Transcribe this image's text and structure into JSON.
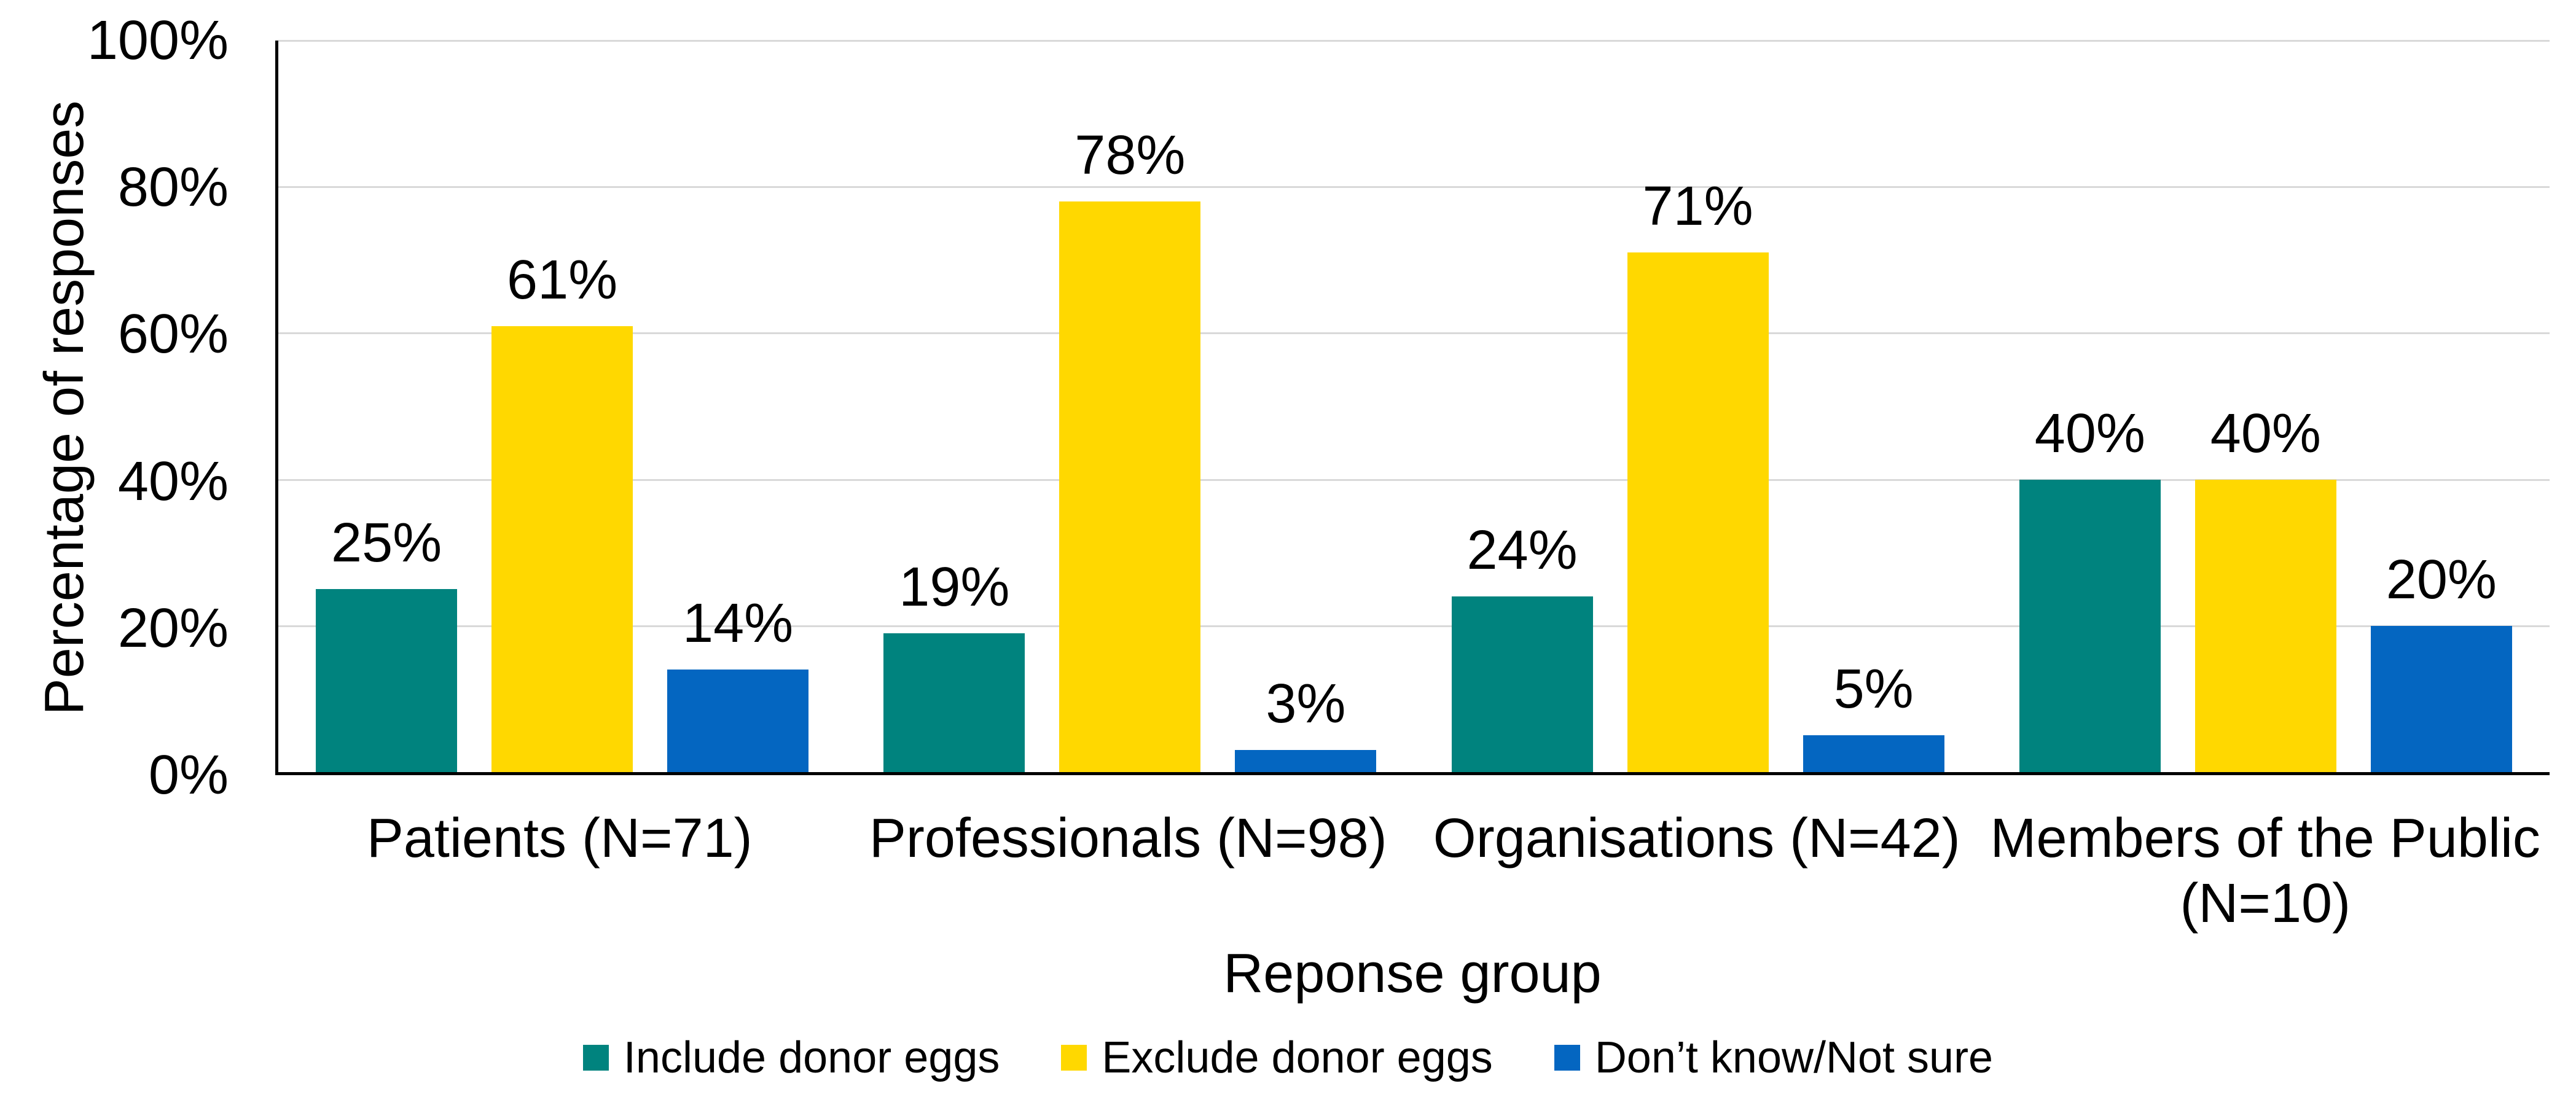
{
  "chart_data": {
    "type": "bar",
    "title": "",
    "xlabel": "Reponse group",
    "ylabel": "Percentage of responses",
    "ylim": [
      0,
      100
    ],
    "yticks": [
      {
        "value": 0,
        "label": "0%"
      },
      {
        "value": 20,
        "label": "20%"
      },
      {
        "value": 40,
        "label": "40%"
      },
      {
        "value": 60,
        "label": "60%"
      },
      {
        "value": 80,
        "label": "80%"
      },
      {
        "value": 100,
        "label": "100%"
      }
    ],
    "gridline_values": [
      20,
      40,
      60,
      80,
      100
    ],
    "grid": "horizontal",
    "legend_position": "bottom",
    "categories": [
      "Patients (N=71)",
      "Professionals (N=98)",
      "Organisations (N=42)",
      "Members of the Public (N=10)"
    ],
    "series": [
      {
        "name": "Include donor eggs",
        "color": "#00837E",
        "values": [
          25,
          19,
          24,
          40
        ],
        "data_labels": [
          "25%",
          "19%",
          "24%",
          "40%"
        ]
      },
      {
        "name": "Exclude donor eggs",
        "color": "#FFD800",
        "values": [
          61,
          78,
          71,
          40
        ],
        "data_labels": [
          "61%",
          "78%",
          "71%",
          "40%"
        ]
      },
      {
        "name": "Don’t know/Not sure",
        "color": "#0466C1",
        "values": [
          14,
          3,
          5,
          20
        ],
        "data_labels": [
          "14%",
          "3%",
          "5%",
          "20%"
        ]
      }
    ],
    "colors": {
      "gridline": "#d9d9d9",
      "axis_line": "#000000",
      "text": "#000000",
      "background": "#ffffff"
    }
  }
}
